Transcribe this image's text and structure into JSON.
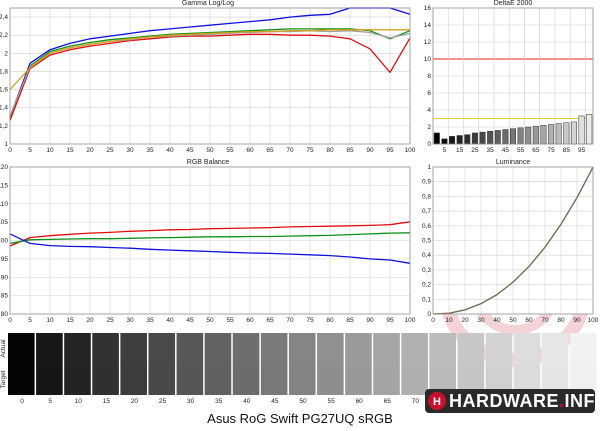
{
  "chart_data": [
    {
      "id": "gamma",
      "type": "line",
      "title": "Gamma Log/Log",
      "x": [
        0,
        5,
        10,
        15,
        20,
        25,
        30,
        35,
        40,
        45,
        50,
        55,
        60,
        65,
        70,
        75,
        80,
        85,
        90,
        95,
        100
      ],
      "xticks": [
        0,
        5,
        10,
        15,
        20,
        25,
        30,
        35,
        40,
        45,
        50,
        55,
        60,
        65,
        70,
        75,
        80,
        85,
        90,
        95,
        100
      ],
      "ylim": [
        1.0,
        2.5
      ],
      "yticks": [
        1.0,
        1.2,
        1.4,
        1.6,
        1.8,
        2.0,
        2.2,
        2.4
      ],
      "ytick_labels": [
        "1",
        "1,2",
        "1,4",
        "1,6",
        "1,8",
        "2",
        "2,2",
        "2,4"
      ],
      "series": [
        {
          "color": "#1010e0",
          "values": [
            1.3,
            1.89,
            2.04,
            2.11,
            2.16,
            2.19,
            2.22,
            2.25,
            2.27,
            2.29,
            2.31,
            2.33,
            2.35,
            2.37,
            2.4,
            2.42,
            2.43,
            2.5,
            2.5,
            2.5,
            2.43
          ]
        },
        {
          "color": "#10901a",
          "values": [
            1.28,
            1.86,
            2.02,
            2.08,
            2.12,
            2.15,
            2.17,
            2.19,
            2.21,
            2.22,
            2.23,
            2.24,
            2.25,
            2.26,
            2.27,
            2.27,
            2.27,
            2.27,
            2.25,
            2.16,
            2.25
          ]
        },
        {
          "color": "#e01010",
          "values": [
            1.26,
            1.83,
            1.98,
            2.04,
            2.08,
            2.11,
            2.14,
            2.16,
            2.18,
            2.19,
            2.19,
            2.2,
            2.21,
            2.21,
            2.2,
            2.2,
            2.19,
            2.16,
            2.05,
            1.79,
            2.17
          ]
        },
        {
          "color": "#a0a0a0",
          "values": [
            1.31,
            1.85,
            2.0,
            2.06,
            2.1,
            2.13,
            2.15,
            2.18,
            2.19,
            2.2,
            2.21,
            2.22,
            2.23,
            2.24,
            2.24,
            2.25,
            2.24,
            2.25,
            2.23,
            2.17,
            2.22
          ]
        },
        {
          "color": "#d4a017",
          "values": [
            1.6,
            1.84,
            2.0,
            2.06,
            2.1,
            2.13,
            2.16,
            2.18,
            2.2,
            2.21,
            2.22,
            2.23,
            2.24,
            2.24,
            2.25,
            2.25,
            2.26,
            2.26,
            2.26,
            2.26,
            2.26
          ]
        }
      ]
    },
    {
      "id": "deltae",
      "type": "bar",
      "title": "DeltaE 2000",
      "x": [
        0,
        5,
        10,
        15,
        20,
        25,
        30,
        35,
        40,
        45,
        50,
        55,
        60,
        65,
        70,
        75,
        80,
        85,
        90,
        95,
        100
      ],
      "xtick_labels": [
        "5",
        "15",
        "25",
        "35",
        "45",
        "55",
        "65",
        "75",
        "85",
        "95"
      ],
      "values": [
        1.3,
        0.6,
        0.9,
        1.0,
        1.1,
        1.3,
        1.4,
        1.5,
        1.6,
        1.7,
        1.8,
        1.9,
        2.0,
        2.1,
        2.2,
        2.3,
        2.4,
        2.5,
        2.6,
        3.3,
        3.5
      ],
      "ylim": [
        0,
        16
      ],
      "yticks": [
        0,
        2,
        4,
        6,
        8,
        10,
        12,
        14,
        16
      ],
      "reference_lines": [
        {
          "y": 10,
          "color": "#e02020"
        },
        {
          "y": 3,
          "color": "#e8d020"
        }
      ]
    },
    {
      "id": "rgb",
      "type": "line",
      "title": "RGB Balance",
      "x": [
        0,
        5,
        10,
        15,
        20,
        25,
        30,
        35,
        40,
        45,
        50,
        55,
        60,
        65,
        70,
        75,
        80,
        85,
        90,
        95,
        100
      ],
      "xticks": [
        0,
        5,
        10,
        15,
        20,
        25,
        30,
        35,
        40,
        45,
        50,
        55,
        60,
        65,
        70,
        75,
        80,
        85,
        90,
        95,
        100
      ],
      "ylim": [
        80,
        120
      ],
      "yticks": [
        80,
        85,
        90,
        95,
        100,
        105,
        110,
        115,
        120
      ],
      "series": [
        {
          "color": "#e01010",
          "values": [
            98.5,
            100.8,
            101.3,
            101.7,
            102.0,
            102.2,
            102.5,
            102.7,
            102.9,
            103.0,
            103.2,
            103.3,
            103.4,
            103.5,
            103.7,
            103.8,
            103.9,
            104.0,
            104.1,
            104.3,
            105.1
          ]
        },
        {
          "color": "#10901a",
          "values": [
            99.2,
            100.2,
            100.3,
            100.4,
            100.5,
            100.5,
            100.6,
            100.7,
            100.8,
            100.9,
            101.0,
            101.0,
            101.1,
            101.1,
            101.2,
            101.3,
            101.4,
            101.6,
            101.8,
            102.0,
            102.1
          ]
        },
        {
          "color": "#1010e0",
          "values": [
            101.8,
            99.2,
            98.6,
            98.4,
            98.3,
            98.1,
            97.9,
            97.6,
            97.4,
            97.2,
            97.0,
            96.8,
            96.6,
            96.5,
            96.3,
            96.1,
            95.9,
            95.5,
            95.0,
            94.7,
            93.8
          ]
        }
      ]
    },
    {
      "id": "luminance",
      "type": "line",
      "title": "Luminance",
      "x": [
        0,
        10,
        20,
        30,
        40,
        50,
        60,
        70,
        80,
        90,
        100
      ],
      "xticks": [
        0,
        10,
        20,
        30,
        40,
        50,
        60,
        70,
        80,
        90,
        100
      ],
      "ylim": [
        0,
        1
      ],
      "yticks": [
        0,
        0.1,
        0.2,
        0.3,
        0.4,
        0.5,
        0.6,
        0.7,
        0.8,
        0.9,
        1
      ],
      "ytick_labels": [
        "0",
        "0,1",
        "0,2",
        "0,3",
        "0,4",
        "0,5",
        "0,6",
        "0,7",
        "0,8",
        "0,9",
        "1"
      ],
      "series": [
        {
          "color": "#d4a017",
          "values": [
            0.0,
            0.006,
            0.029,
            0.071,
            0.133,
            0.218,
            0.325,
            0.456,
            0.612,
            0.793,
            1.0
          ]
        },
        {
          "color": "#666666",
          "values": [
            0.0,
            0.005,
            0.028,
            0.07,
            0.131,
            0.216,
            0.323,
            0.454,
            0.61,
            0.791,
            0.998
          ]
        }
      ]
    }
  ],
  "swatches": {
    "row_labels": {
      "actual": "Actual",
      "target": "Target"
    },
    "labels": [
      "0",
      "5",
      "10",
      "15",
      "20",
      "25",
      "30",
      "35",
      "40",
      "45",
      "50",
      "55",
      "60",
      "65",
      "70",
      "75",
      "80",
      "85",
      "90",
      "95",
      "100"
    ],
    "levels": [
      0,
      5,
      10,
      15,
      20,
      25,
      30,
      35,
      40,
      45,
      50,
      55,
      60,
      65,
      70,
      75,
      80,
      85,
      90,
      95,
      100
    ]
  },
  "caption": "Asus RoG Swift PG27UQ sRGB",
  "logo": {
    "text_left": "HARDWARE",
    "text_dot": ".",
    "text_right": "INFO",
    "accent": "#c8102e"
  }
}
